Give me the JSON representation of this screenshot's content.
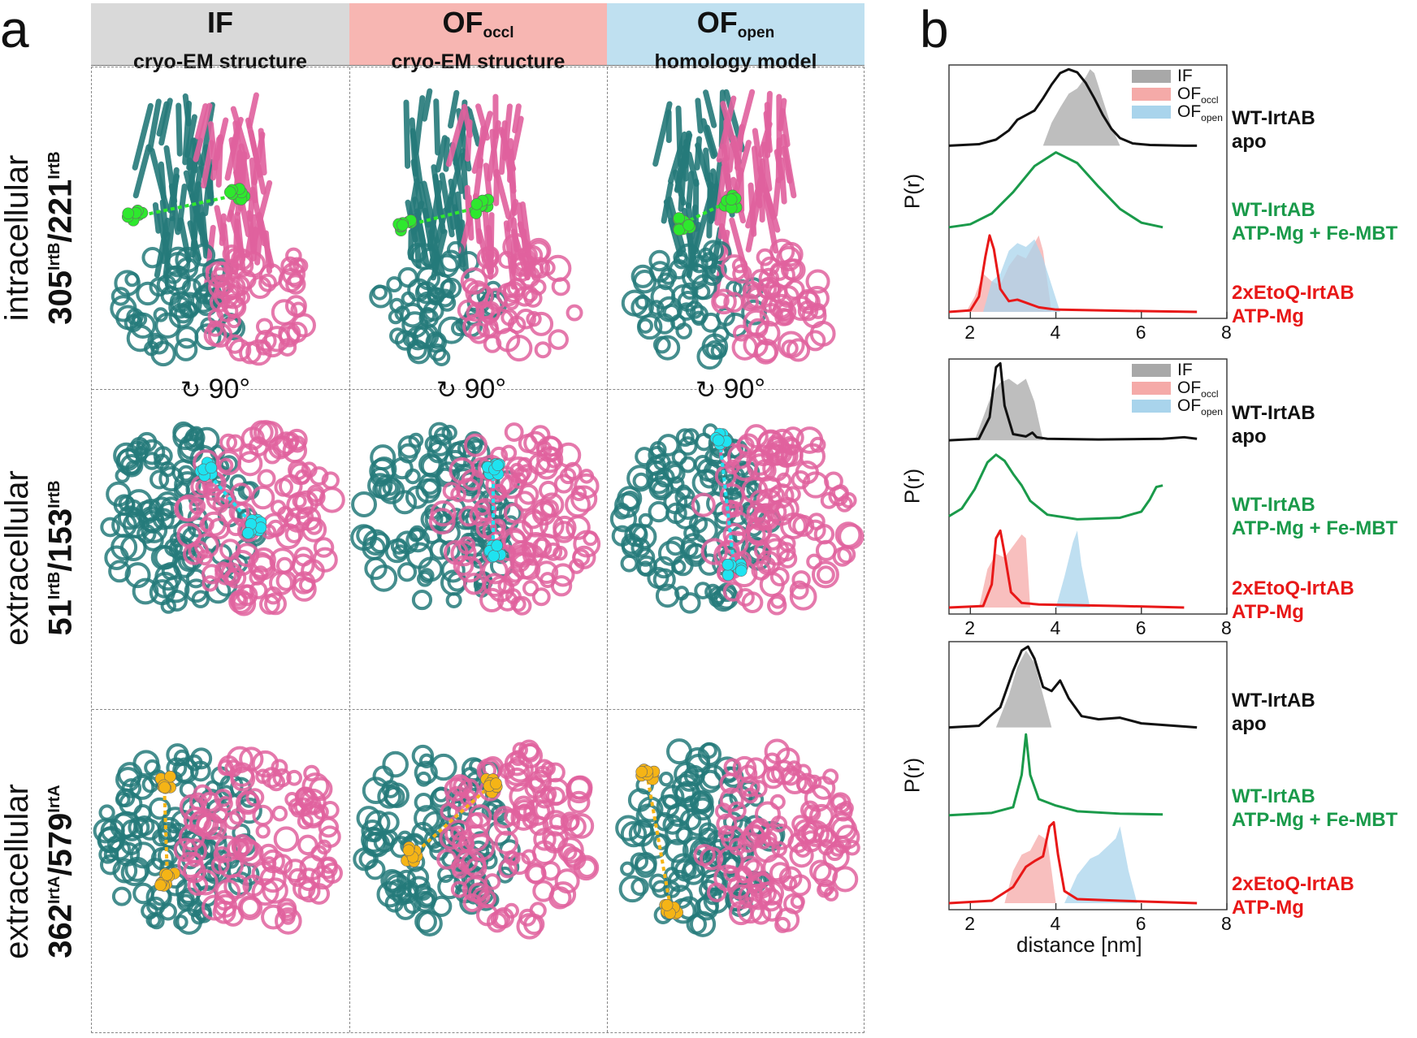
{
  "panel_a": {
    "letter": "a",
    "columns": [
      {
        "title": "IF",
        "sub": "",
        "subtitle": "cryo-EM structure",
        "bg": "#d9d9d9"
      },
      {
        "title": "OF",
        "sub": "occl",
        "subtitle": "cryo-EM structure",
        "bg": "#f7b6b2"
      },
      {
        "title": "OF",
        "sub": "open",
        "subtitle": "homology model",
        "bg": "#bfe0f0"
      }
    ],
    "rows": [
      {
        "region": "intracellular",
        "res1": "305",
        "sup1": "IrtB",
        "sep": "/",
        "res2": "221",
        "sup2": "IrtB",
        "marker_color": "#2ee82e"
      },
      {
        "region": "extracellular",
        "res1": "51",
        "sup1": "IrtB",
        "sep": "/",
        "res2": "153",
        "sup2": "IrtB",
        "marker_color": "#1fe3f0"
      },
      {
        "region": "extracellular",
        "res1": "362",
        "sup1": "IrtA",
        "sep": "/",
        "res2": "579",
        "sup2": "IrtA",
        "marker_color": "#f5b416"
      }
    ],
    "rotation_label": "90°",
    "protein_colors": {
      "chainA": "#257a7a",
      "chainB": "#e0619e"
    }
  },
  "panel_b": {
    "letter": "b",
    "ylabel": "P(r)",
    "xlabel": "distance [nm]",
    "legend": [
      {
        "name": "IF",
        "sub": "",
        "color": "#a8a8a8"
      },
      {
        "name": "OF",
        "sub": "occl",
        "color": "#f5aaa8"
      },
      {
        "name": "OF",
        "sub": "open",
        "color": "#a9d4ec"
      }
    ],
    "sample_labels": [
      {
        "line1": "WT-IrtAB",
        "line2": "apo",
        "color": "#111111"
      },
      {
        "line1": "WT-IrtAB",
        "line2": "ATP-Mg + Fe-MBT",
        "color": "#1a9a4a"
      },
      {
        "line1": "2xEtoQ-IrtAB",
        "line2": "ATP-Mg",
        "color": "#e81818"
      }
    ]
  },
  "chart_data": [
    {
      "type": "line",
      "title": "intracellular 305IrtB/221IrtB",
      "xlabel": "distance [nm]",
      "ylabel": "P(r)",
      "xlim": [
        1.5,
        8
      ],
      "xticks": [
        2,
        4,
        6,
        8
      ],
      "series": [
        {
          "name": "WT-IrtAB apo",
          "color": "#111111",
          "offset": 2,
          "x": [
            1.5,
            2.2,
            2.6,
            2.9,
            3.1,
            3.3,
            3.5,
            3.7,
            3.9,
            4.1,
            4.3,
            4.5,
            4.7,
            4.9,
            5.1,
            5.3,
            5.5,
            5.8,
            6.2,
            7.0,
            7.3
          ],
          "y": [
            0,
            0.02,
            0.08,
            0.2,
            0.34,
            0.4,
            0.46,
            0.62,
            0.8,
            0.95,
            1.0,
            0.96,
            0.82,
            0.62,
            0.4,
            0.22,
            0.1,
            0.03,
            0.01,
            0,
            0
          ]
        },
        {
          "name": "WT-IrtAB ATP-Mg + Fe-MBT",
          "color": "#1a9a4a",
          "offset": 1,
          "x": [
            1.5,
            2.0,
            2.5,
            3.0,
            3.5,
            4.0,
            4.5,
            5.0,
            5.5,
            6.0,
            6.5
          ],
          "y": [
            0.02,
            0.06,
            0.2,
            0.48,
            0.82,
            1.0,
            0.86,
            0.55,
            0.26,
            0.08,
            0.02
          ]
        },
        {
          "name": "2xEtoQ-IrtAB ATP-Mg",
          "color": "#e81818",
          "offset": 0,
          "x": [
            1.5,
            2.0,
            2.2,
            2.35,
            2.45,
            2.55,
            2.7,
            2.9,
            3.1,
            3.3,
            3.6,
            4.0,
            5.0,
            6.0,
            7.3
          ],
          "y": [
            0,
            0.02,
            0.2,
            0.72,
            1.0,
            0.82,
            0.3,
            0.14,
            0.16,
            0.12,
            0.06,
            0.03,
            0.02,
            0.01,
            0
          ]
        }
      ],
      "reference_fills": [
        {
          "name": "IF",
          "color": "#a8a8a8",
          "offset": 2,
          "x": [
            3.7,
            3.9,
            4.1,
            4.3,
            4.5,
            4.7,
            4.8,
            4.9,
            5.1,
            5.3,
            5.5
          ],
          "y": [
            0,
            0.3,
            0.5,
            0.68,
            0.75,
            0.9,
            1.0,
            0.95,
            0.6,
            0.25,
            0
          ]
        },
        {
          "name": "OFoccl",
          "color": "#f5aaa8",
          "offset": 0,
          "x": [
            1.9,
            2.1,
            2.3,
            2.5,
            2.7,
            2.9,
            3.1,
            3.3,
            3.5,
            3.6,
            3.7,
            3.8,
            3.9
          ],
          "y": [
            0,
            0.2,
            0.5,
            0.4,
            0.35,
            0.6,
            0.75,
            0.7,
            0.9,
            1.0,
            0.8,
            0.4,
            0
          ]
        },
        {
          "name": "OFopen",
          "color": "#a9d4ec",
          "offset": 0,
          "x": [
            2.3,
            2.5,
            2.7,
            2.9,
            3.1,
            3.3,
            3.5,
            3.7,
            3.9,
            4.1
          ],
          "y": [
            0,
            0.4,
            0.5,
            0.8,
            0.9,
            0.85,
            0.95,
            0.7,
            0.35,
            0
          ]
        }
      ]
    },
    {
      "type": "line",
      "title": "extracellular 51IrtB/153IrtB",
      "xlabel": "distance [nm]",
      "ylabel": "P(r)",
      "xlim": [
        1.5,
        8
      ],
      "xticks": [
        2,
        4,
        6,
        8
      ],
      "series": [
        {
          "name": "WT-IrtAB apo",
          "color": "#111111",
          "offset": 2,
          "x": [
            1.5,
            2.2,
            2.45,
            2.6,
            2.7,
            2.8,
            3.0,
            3.3,
            3.45,
            3.55,
            3.8,
            5.0,
            6.5,
            7.0,
            7.3
          ],
          "y": [
            0,
            0.02,
            0.3,
            0.95,
            1.0,
            0.45,
            0.08,
            0.05,
            0.1,
            0.04,
            0.02,
            0.01,
            0.02,
            0.04,
            0.02
          ]
        },
        {
          "name": "WT-IrtAB ATP-Mg + Fe-MBT",
          "color": "#1a9a4a",
          "offset": 1,
          "x": [
            1.5,
            1.8,
            2.1,
            2.4,
            2.6,
            2.8,
            3.0,
            3.2,
            3.4,
            3.8,
            4.5,
            5.5,
            6.0,
            6.2,
            6.35,
            6.5
          ],
          "y": [
            0.1,
            0.2,
            0.45,
            0.8,
            0.9,
            0.82,
            0.65,
            0.5,
            0.3,
            0.12,
            0.06,
            0.08,
            0.16,
            0.32,
            0.48,
            0.5
          ]
        },
        {
          "name": "2xEtoQ-IrtAB ATP-Mg",
          "color": "#e81818",
          "offset": 0,
          "x": [
            1.5,
            2.3,
            2.5,
            2.6,
            2.7,
            2.8,
            2.95,
            3.2,
            3.6,
            4.5,
            5.5,
            7.0
          ],
          "y": [
            0,
            0.02,
            0.3,
            0.9,
            1.0,
            0.7,
            0.2,
            0.06,
            0.04,
            0.03,
            0.02,
            0
          ]
        }
      ],
      "reference_fills": [
        {
          "name": "IF",
          "color": "#a8a8a8",
          "offset": 2,
          "x": [
            2.1,
            2.3,
            2.5,
            2.7,
            2.9,
            3.1,
            3.3,
            3.5,
            3.7
          ],
          "y": [
            0,
            0.3,
            0.6,
            0.75,
            0.8,
            0.72,
            0.8,
            0.5,
            0
          ]
        },
        {
          "name": "OFoccl",
          "color": "#f5aaa8",
          "offset": 0,
          "x": [
            2.2,
            2.4,
            2.6,
            2.8,
            3.0,
            3.2,
            3.3,
            3.4
          ],
          "y": [
            0,
            0.5,
            0.7,
            0.65,
            0.8,
            0.95,
            0.9,
            0
          ]
        },
        {
          "name": "OFopen",
          "color": "#a9d4ec",
          "offset": 0,
          "x": [
            4.0,
            4.2,
            4.4,
            4.5,
            4.6,
            4.8
          ],
          "y": [
            0,
            0.4,
            0.85,
            1.0,
            0.55,
            0
          ]
        }
      ]
    },
    {
      "type": "line",
      "title": "extracellular 362IrtA/579IrtA",
      "xlabel": "distance [nm]",
      "ylabel": "P(r)",
      "xlim": [
        1.5,
        8
      ],
      "xticks": [
        2,
        4,
        6,
        8
      ],
      "series": [
        {
          "name": "WT-IrtAB apo",
          "color": "#111111",
          "offset": 2,
          "x": [
            1.5,
            2.2,
            2.7,
            3.0,
            3.2,
            3.35,
            3.5,
            3.7,
            3.9,
            4.1,
            4.3,
            4.6,
            5.0,
            5.5,
            6.0,
            7.3
          ],
          "y": [
            0,
            0.02,
            0.25,
            0.7,
            0.95,
            1.0,
            0.85,
            0.5,
            0.45,
            0.58,
            0.36,
            0.14,
            0.1,
            0.12,
            0.05,
            0
          ]
        },
        {
          "name": "WT-IrtAB ATP-Mg + Fe-MBT",
          "color": "#1a9a4a",
          "offset": 1,
          "x": [
            1.5,
            2.5,
            3.0,
            3.2,
            3.3,
            3.4,
            3.6,
            4.0,
            4.5,
            5.5,
            6.5
          ],
          "y": [
            0,
            0.03,
            0.1,
            0.5,
            1.0,
            0.5,
            0.2,
            0.12,
            0.05,
            0.02,
            0.01
          ]
        },
        {
          "name": "2xEtoQ-IrtAB ATP-Mg",
          "color": "#e81818",
          "offset": 0,
          "x": [
            1.5,
            2.5,
            3.0,
            3.3,
            3.5,
            3.7,
            3.85,
            3.95,
            4.05,
            4.2,
            4.5,
            5.5,
            7.3
          ],
          "y": [
            0,
            0.03,
            0.2,
            0.45,
            0.52,
            0.58,
            0.95,
            1.0,
            0.6,
            0.15,
            0.05,
            0.03,
            0
          ]
        }
      ],
      "reference_fills": [
        {
          "name": "IF",
          "color": "#a8a8a8",
          "offset": 2,
          "x": [
            2.6,
            2.9,
            3.1,
            3.3,
            3.5,
            3.7,
            3.9
          ],
          "y": [
            0,
            0.4,
            0.75,
            0.95,
            0.8,
            0.4,
            0
          ]
        },
        {
          "name": "OFoccl",
          "color": "#f5aaa8",
          "offset": 0,
          "x": [
            2.8,
            3.0,
            3.2,
            3.4,
            3.6,
            3.8,
            3.9,
            4.0
          ],
          "y": [
            0,
            0.4,
            0.6,
            0.65,
            0.85,
            0.78,
            0.4,
            0
          ]
        },
        {
          "name": "OFopen",
          "color": "#a9d4ec",
          "offset": 0,
          "x": [
            4.2,
            4.5,
            4.8,
            5.0,
            5.2,
            5.4,
            5.5,
            5.7,
            5.9
          ],
          "y": [
            0,
            0.35,
            0.55,
            0.6,
            0.7,
            0.8,
            0.95,
            0.4,
            0
          ]
        }
      ]
    }
  ]
}
